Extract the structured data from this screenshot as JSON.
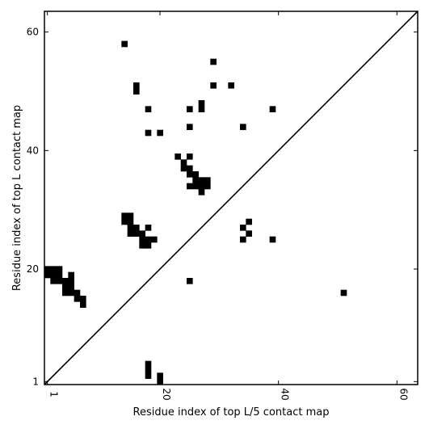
{
  "chart_data": {
    "type": "heatmap",
    "title": "",
    "xlabel": "Residue index of top L/5 contact map",
    "ylabel": "Residue index of top L contact map",
    "xlim": [
      0.5,
      63.5
    ],
    "ylim": [
      0.5,
      63.5
    ],
    "xticks": [
      {
        "value": 1,
        "label": "1"
      },
      {
        "value": 20,
        "label": "20"
      },
      {
        "value": 40,
        "label": "40"
      },
      {
        "value": 60,
        "label": "60"
      }
    ],
    "yticks": [
      {
        "value": 1,
        "label": "1"
      },
      {
        "value": 20,
        "label": "20"
      },
      {
        "value": 40,
        "label": "40"
      },
      {
        "value": 60,
        "label": "60"
      }
    ],
    "diagonal": [
      [
        0.5,
        0.5
      ],
      [
        63.5,
        63.5
      ]
    ],
    "cell_color": "#000000",
    "cells": [
      [
        14,
        58
      ],
      [
        29,
        55
      ],
      [
        16,
        51
      ],
      [
        16,
        50
      ],
      [
        29,
        51
      ],
      [
        32,
        51
      ],
      [
        18,
        47
      ],
      [
        25,
        47
      ],
      [
        27,
        48
      ],
      [
        27,
        47
      ],
      [
        39,
        47
      ],
      [
        25,
        44
      ],
      [
        34,
        44
      ],
      [
        18,
        43
      ],
      [
        20,
        43
      ],
      [
        23,
        39
      ],
      [
        25,
        39
      ],
      [
        24,
        38
      ],
      [
        24,
        37
      ],
      [
        25,
        37
      ],
      [
        25,
        36
      ],
      [
        26,
        36
      ],
      [
        26,
        35
      ],
      [
        27,
        35
      ],
      [
        28,
        35
      ],
      [
        25,
        34
      ],
      [
        26,
        34
      ],
      [
        27,
        34
      ],
      [
        28,
        34
      ],
      [
        27,
        33
      ],
      [
        14,
        29
      ],
      [
        15,
        29
      ],
      [
        14,
        28
      ],
      [
        15,
        28
      ],
      [
        15,
        27
      ],
      [
        16,
        27
      ],
      [
        18,
        27
      ],
      [
        15,
        26
      ],
      [
        16,
        26
      ],
      [
        17,
        26
      ],
      [
        17,
        25
      ],
      [
        18,
        25
      ],
      [
        19,
        25
      ],
      [
        17,
        24
      ],
      [
        18,
        24
      ],
      [
        34,
        27
      ],
      [
        35,
        28
      ],
      [
        35,
        26
      ],
      [
        34,
        25
      ],
      [
        39,
        25
      ],
      [
        1,
        20
      ],
      [
        2,
        20
      ],
      [
        3,
        20
      ],
      [
        1,
        19
      ],
      [
        2,
        19
      ],
      [
        3,
        19
      ],
      [
        5,
        19
      ],
      [
        2,
        18
      ],
      [
        3,
        18
      ],
      [
        4,
        18
      ],
      [
        5,
        18
      ],
      [
        25,
        18
      ],
      [
        4,
        17
      ],
      [
        5,
        17
      ],
      [
        4,
        16
      ],
      [
        5,
        16
      ],
      [
        6,
        16
      ],
      [
        6,
        15
      ],
      [
        7,
        15
      ],
      [
        7,
        14
      ],
      [
        51,
        16
      ],
      [
        18,
        4
      ],
      [
        18,
        3
      ],
      [
        18,
        2
      ],
      [
        20,
        2
      ],
      [
        20,
        1
      ]
    ]
  }
}
